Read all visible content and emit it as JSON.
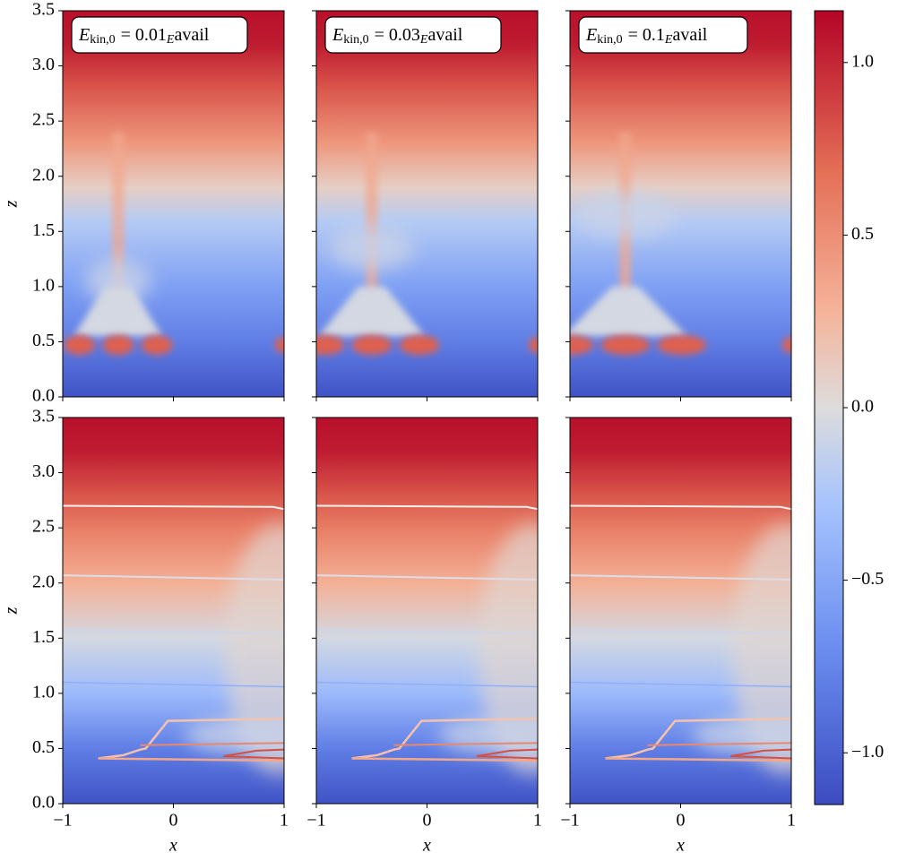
{
  "chart_data": [
    {
      "type": "heatmap",
      "title": [
        "E",
        "kin,0",
        "= 0.01",
        "E",
        "avail"
      ],
      "ylabel": "z",
      "xlim": [
        -1,
        1
      ],
      "ylim": [
        0,
        3.5
      ],
      "xticks": [
        {
          "value": -1,
          "label": "−1"
        },
        0,
        1
      ],
      "yticks": [
        {
          "value": 0,
          "label": "0.0"
        },
        0.5,
        {
          "value": 1,
          "label": "1.0"
        },
        1.5,
        {
          "value": 2,
          "label": "2.0"
        },
        2.5,
        {
          "value": 3,
          "label": "3.0"
        },
        3.5
      ],
      "tick_labels": {
        "x": false,
        "y": true
      }
    },
    {
      "type": "heatmap",
      "title": [
        "E",
        "kin,0",
        "= 0.03",
        "E",
        "avail"
      ],
      "xlim": [
        -1,
        1
      ],
      "ylim": [
        0,
        3.5
      ],
      "xticks": [
        {
          "value": -1,
          "label": "−1"
        },
        0,
        1
      ],
      "yticks": [
        {
          "value": 0,
          "label": "0.0"
        },
        0.5,
        {
          "value": 1,
          "label": "1.0"
        },
        1.5,
        {
          "value": 2,
          "label": "2.0"
        },
        2.5,
        {
          "value": 3,
          "label": "3.0"
        },
        3.5
      ],
      "tick_labels": {
        "x": false,
        "y": false
      }
    },
    {
      "type": "heatmap",
      "title": [
        "E",
        "kin,0",
        "= 0.1",
        "E",
        "avail"
      ],
      "xlim": [
        -1,
        1
      ],
      "ylim": [
        0,
        3.5
      ],
      "xticks": [
        {
          "value": -1,
          "label": "−1"
        },
        0,
        1
      ],
      "yticks": [
        {
          "value": 0,
          "label": "0.0"
        },
        0.5,
        {
          "value": 1,
          "label": "1.0"
        },
        1.5,
        {
          "value": 2,
          "label": "2.0"
        },
        2.5,
        {
          "value": 3,
          "label": "3.0"
        },
        3.5
      ],
      "tick_labels": {
        "x": false,
        "y": false
      }
    },
    {
      "type": "heatmap",
      "ylabel": "z",
      "xlabel": "x",
      "xlim": [
        -1,
        1
      ],
      "ylim": [
        0,
        3.5
      ],
      "xticks": [
        {
          "value": -1,
          "label": "−1"
        },
        0,
        1
      ],
      "yticks": [
        {
          "value": 0,
          "label": "0.0"
        },
        0.5,
        {
          "value": 1,
          "label": "1.0"
        },
        1.5,
        {
          "value": 2,
          "label": "2.0"
        },
        2.5,
        {
          "value": 3,
          "label": "3.0"
        },
        3.5
      ],
      "tick_labels": {
        "x": true,
        "y": true
      }
    },
    {
      "type": "heatmap",
      "xlabel": "x",
      "xlim": [
        -1,
        1
      ],
      "ylim": [
        0,
        3.5
      ],
      "xticks": [
        {
          "value": -1,
          "label": "−1"
        },
        0,
        1
      ],
      "yticks": [
        {
          "value": 0,
          "label": "0.0"
        },
        0.5,
        {
          "value": 1,
          "label": "1.0"
        },
        1.5,
        {
          "value": 2,
          "label": "2.0"
        },
        2.5,
        {
          "value": 3,
          "label": "3.0"
        },
        3.5
      ],
      "tick_labels": {
        "x": true,
        "y": false
      }
    },
    {
      "type": "heatmap",
      "xlabel": "x",
      "xlim": [
        -1,
        1
      ],
      "ylim": [
        0,
        3.5
      ],
      "xticks": [
        {
          "value": -1,
          "label": "−1"
        },
        0,
        1
      ],
      "yticks": [
        {
          "value": 0,
          "label": "0.0"
        },
        0.5,
        {
          "value": 1,
          "label": "1.0"
        },
        1.5,
        {
          "value": 2,
          "label": "2.0"
        },
        2.5,
        {
          "value": 3,
          "label": "3.0"
        },
        3.5
      ],
      "tick_labels": {
        "x": true,
        "y": false
      }
    },
    {
      "type": "colorbar",
      "colormap": "coolwarm",
      "ylim": [
        -1.15,
        1.15
      ],
      "yticks": [
        {
          "value": -1,
          "label": "−1.0"
        },
        {
          "value": -0.5,
          "label": "−0.5"
        },
        {
          "value": 0,
          "label": "0.0"
        },
        0.5,
        {
          "value": 1,
          "label": "1.0"
        }
      ]
    }
  ]
}
